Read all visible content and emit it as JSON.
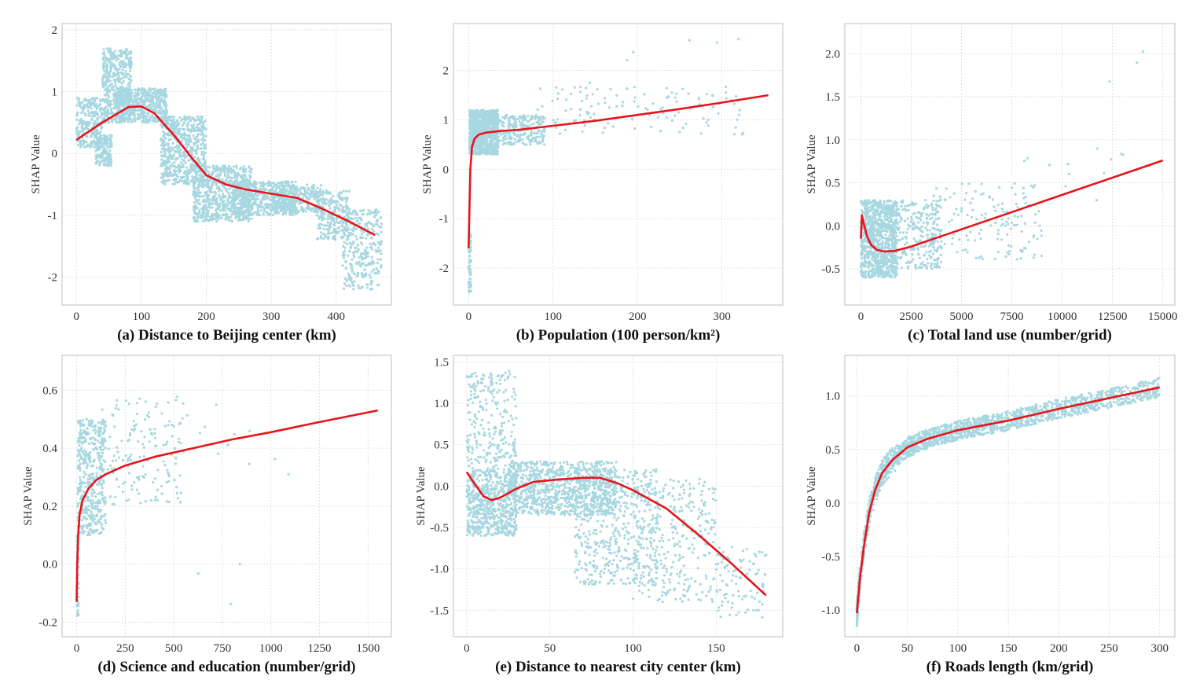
{
  "figure": {
    "colors": {
      "points": "#a7d7e0",
      "trend": "#e8141b",
      "frame": "#bdbdbd",
      "grid": "#d9d9d9"
    }
  },
  "chart_data": [
    {
      "id": "a",
      "type": "scatter",
      "xlabel": "(a) Distance to Beijing center (km)",
      "ylabel": "SHAP Value",
      "xlim": [
        -22,
        485
      ],
      "ylim": [
        -2.45,
        2.1
      ],
      "xticks": [
        "0",
        "100",
        "200",
        "300",
        "400"
      ],
      "xtick_values": [
        0,
        100,
        200,
        300,
        400
      ],
      "yticks": [
        "-2",
        "-1",
        "0",
        "1",
        "2"
      ],
      "ytick_values": [
        -2,
        -1,
        0,
        1,
        2
      ],
      "trend": {
        "x": [
          0,
          40,
          80,
          100,
          120,
          150,
          180,
          200,
          230,
          260,
          300,
          340,
          380,
          420,
          460
        ],
        "y": [
          0.22,
          0.5,
          0.75,
          0.76,
          0.65,
          0.3,
          -0.1,
          -0.35,
          -0.5,
          -0.58,
          -0.65,
          -0.72,
          -0.9,
          -1.1,
          -1.32
        ]
      },
      "scatter_clusters": [
        {
          "x": [
            0,
            40
          ],
          "y": [
            0.1,
            0.9
          ],
          "n": 250
        },
        {
          "x": [
            30,
            55
          ],
          "y": [
            -0.2,
            0.3
          ],
          "n": 150
        },
        {
          "x": [
            40,
            85
          ],
          "y": [
            0.5,
            1.7
          ],
          "n": 500
        },
        {
          "x": [
            60,
            140
          ],
          "y": [
            0.5,
            1.05
          ],
          "n": 500
        },
        {
          "x": [
            130,
            200
          ],
          "y": [
            -0.5,
            0.6
          ],
          "n": 600
        },
        {
          "x": [
            180,
            270
          ],
          "y": [
            -1.1,
            -0.2
          ],
          "n": 700
        },
        {
          "x": [
            240,
            340
          ],
          "y": [
            -1.0,
            -0.45
          ],
          "n": 500
        },
        {
          "x": [
            300,
            380
          ],
          "y": [
            -0.95,
            -0.5
          ],
          "n": 300
        },
        {
          "x": [
            370,
            420
          ],
          "y": [
            -1.4,
            -0.6
          ],
          "n": 250
        },
        {
          "x": [
            410,
            470
          ],
          "y": [
            -2.2,
            -0.9
          ],
          "n": 300
        }
      ]
    },
    {
      "id": "b",
      "type": "scatter",
      "xlabel": "(b) Population (100 person/km²)",
      "ylabel": "SHAP Value",
      "xlim": [
        -18,
        372
      ],
      "ylim": [
        -2.75,
        2.95
      ],
      "xticks": [
        "0",
        "100",
        "200",
        "300"
      ],
      "xtick_values": [
        0,
        100,
        200,
        300
      ],
      "yticks": [
        "-2",
        "-1",
        "0",
        "1",
        "2"
      ],
      "ytick_values": [
        -2,
        -1,
        0,
        1,
        2
      ],
      "trend": {
        "x": [
          0,
          1,
          2,
          4,
          7,
          12,
          20,
          35,
          60,
          100,
          150,
          200,
          250,
          300,
          355
        ],
        "y": [
          -1.6,
          -0.8,
          0.0,
          0.45,
          0.62,
          0.7,
          0.74,
          0.77,
          0.8,
          0.88,
          0.98,
          1.1,
          1.22,
          1.35,
          1.5
        ]
      },
      "scatter_clusters": [
        {
          "x": [
            0,
            3
          ],
          "y": [
            -2.5,
            -1.3
          ],
          "n": 60
        },
        {
          "x": [
            1,
            35
          ],
          "y": [
            0.3,
            1.2
          ],
          "n": 900
        },
        {
          "x": [
            30,
            90
          ],
          "y": [
            0.5,
            1.1
          ],
          "n": 250
        },
        {
          "x": [
            80,
            330
          ],
          "y": [
            0.7,
            1.7
          ],
          "n": 120
        },
        {
          "x": [
            110,
            320
          ],
          "y": [
            1.0,
            2.65
          ],
          "n": 12
        }
      ]
    },
    {
      "id": "c",
      "type": "scatter",
      "xlabel": "(c) Total land use (number/grid)",
      "ylabel": "SHAP Value",
      "xlim": [
        -800,
        15600
      ],
      "ylim": [
        -0.92,
        2.35
      ],
      "xticks": [
        "0",
        "2500",
        "5000",
        "7500",
        "10000",
        "12500",
        "15000"
      ],
      "xtick_values": [
        0,
        2500,
        5000,
        7500,
        10000,
        12500,
        15000
      ],
      "yticks": [
        "-0.5",
        "0.0",
        "0.5",
        "1.0",
        "1.5",
        "2.0"
      ],
      "ytick_values": [
        -0.5,
        0,
        0.5,
        1,
        1.5,
        2
      ],
      "trend": {
        "x": [
          0,
          50,
          150,
          300,
          500,
          800,
          1200,
          1700,
          2500,
          3500,
          5000,
          7500,
          10000,
          12500,
          15000
        ],
        "y": [
          -0.15,
          0.12,
          0.02,
          -0.12,
          -0.22,
          -0.28,
          -0.3,
          -0.29,
          -0.24,
          -0.16,
          -0.04,
          0.16,
          0.36,
          0.56,
          0.76
        ]
      },
      "scatter_clusters": [
        {
          "x": [
            0,
            1800
          ],
          "y": [
            -0.6,
            0.3
          ],
          "n": 900
        },
        {
          "x": [
            1500,
            4000
          ],
          "y": [
            -0.5,
            0.3
          ],
          "n": 300
        },
        {
          "x": [
            3500,
            9000
          ],
          "y": [
            -0.4,
            0.5
          ],
          "n": 150
        },
        {
          "x": [
            8000,
            15000
          ],
          "y": [
            0.2,
            0.9
          ],
          "n": 15
        },
        {
          "x": [
            12300,
            15000
          ],
          "y": [
            1.2,
            2.2
          ],
          "n": 3
        }
      ]
    },
    {
      "id": "d",
      "type": "scatter",
      "xlabel": "(d) Science and education (number/grid)",
      "ylabel": "SHAP Value",
      "xlim": [
        -75,
        1620
      ],
      "ylim": [
        -0.25,
        0.72
      ],
      "xticks": [
        "0",
        "250",
        "500",
        "750",
        "1000",
        "1250",
        "1500"
      ],
      "xtick_values": [
        0,
        250,
        500,
        750,
        1000,
        1250,
        1500
      ],
      "yticks": [
        "-0.2",
        "0.0",
        "0.2",
        "0.4",
        "0.6"
      ],
      "ytick_values": [
        -0.2,
        0,
        0.2,
        0.4,
        0.6
      ],
      "trend": {
        "x": [
          0,
          3,
          8,
          15,
          30,
          60,
          100,
          150,
          250,
          400,
          600,
          800,
          1000,
          1250,
          1550
        ],
        "y": [
          -0.13,
          0.0,
          0.1,
          0.17,
          0.22,
          0.26,
          0.29,
          0.31,
          0.34,
          0.37,
          0.4,
          0.43,
          0.455,
          0.49,
          0.53
        ]
      },
      "scatter_clusters": [
        {
          "x": [
            0,
            10
          ],
          "y": [
            -0.2,
            0.1
          ],
          "n": 50
        },
        {
          "x": [
            5,
            150
          ],
          "y": [
            0.1,
            0.5
          ],
          "n": 450
        },
        {
          "x": [
            120,
            550
          ],
          "y": [
            0.2,
            0.58
          ],
          "n": 160
        },
        {
          "x": [
            500,
            1100
          ],
          "y": [
            0.3,
            0.55
          ],
          "n": 15
        },
        {
          "x": [
            600,
            1050
          ],
          "y": [
            -0.18,
            0.1
          ],
          "n": 3
        }
      ]
    },
    {
      "id": "e",
      "type": "scatter",
      "xlabel": "(e) Distance to nearest city center (km)",
      "ylabel": "SHAP Value",
      "xlim": [
        -8,
        190
      ],
      "ylim": [
        -1.82,
        1.58
      ],
      "xticks": [
        "0",
        "50",
        "100",
        "150"
      ],
      "xtick_values": [
        0,
        50,
        100,
        150
      ],
      "yticks": [
        "-1.5",
        "-1.0",
        "-0.5",
        "0.0",
        "0.5",
        "1.0",
        "1.5"
      ],
      "ytick_values": [
        -1.5,
        -1,
        -0.5,
        0,
        0.5,
        1,
        1.5
      ],
      "trend": {
        "x": [
          0,
          5,
          10,
          15,
          20,
          30,
          40,
          55,
          70,
          80,
          90,
          100,
          120,
          140,
          160,
          180
        ],
        "y": [
          0.17,
          0.02,
          -0.12,
          -0.17,
          -0.14,
          -0.03,
          0.05,
          0.08,
          0.1,
          0.1,
          0.04,
          -0.05,
          -0.27,
          -0.6,
          -0.95,
          -1.32
        ]
      },
      "scatter_clusters": [
        {
          "x": [
            0,
            30
          ],
          "y": [
            -0.6,
            0.2
          ],
          "n": 600
        },
        {
          "x": [
            0,
            30
          ],
          "y": [
            0.2,
            1.4
          ],
          "n": 250
        },
        {
          "x": [
            25,
            90
          ],
          "y": [
            -0.35,
            0.3
          ],
          "n": 900
        },
        {
          "x": [
            65,
            115
          ],
          "y": [
            -1.2,
            0.2
          ],
          "n": 500
        },
        {
          "x": [
            100,
            150
          ],
          "y": [
            -1.4,
            0.1
          ],
          "n": 300
        },
        {
          "x": [
            150,
            180
          ],
          "y": [
            -1.6,
            -0.7
          ],
          "n": 100
        }
      ]
    },
    {
      "id": "f",
      "type": "scatter",
      "xlabel": "(f) Roads length (km/grid)",
      "ylabel": "SHAP Value",
      "xlim": [
        -12,
        315
      ],
      "ylim": [
        -1.25,
        1.38
      ],
      "xticks": [
        "0",
        "50",
        "100",
        "150",
        "200",
        "250",
        "300"
      ],
      "xtick_values": [
        0,
        50,
        100,
        150,
        200,
        250,
        300
      ],
      "yticks": [
        "-1.0",
        "-0.5",
        "0.0",
        "0.5",
        "1.0"
      ],
      "ytick_values": [
        -1,
        -0.5,
        0,
        0.5,
        1
      ],
      "trend": {
        "x": [
          0,
          3,
          7,
          12,
          18,
          25,
          35,
          50,
          70,
          100,
          150,
          200,
          250,
          300
        ],
        "y": [
          -1.03,
          -0.7,
          -0.4,
          -0.1,
          0.12,
          0.28,
          0.4,
          0.52,
          0.6,
          0.68,
          0.77,
          0.88,
          0.98,
          1.08
        ]
      }
    }
  ]
}
